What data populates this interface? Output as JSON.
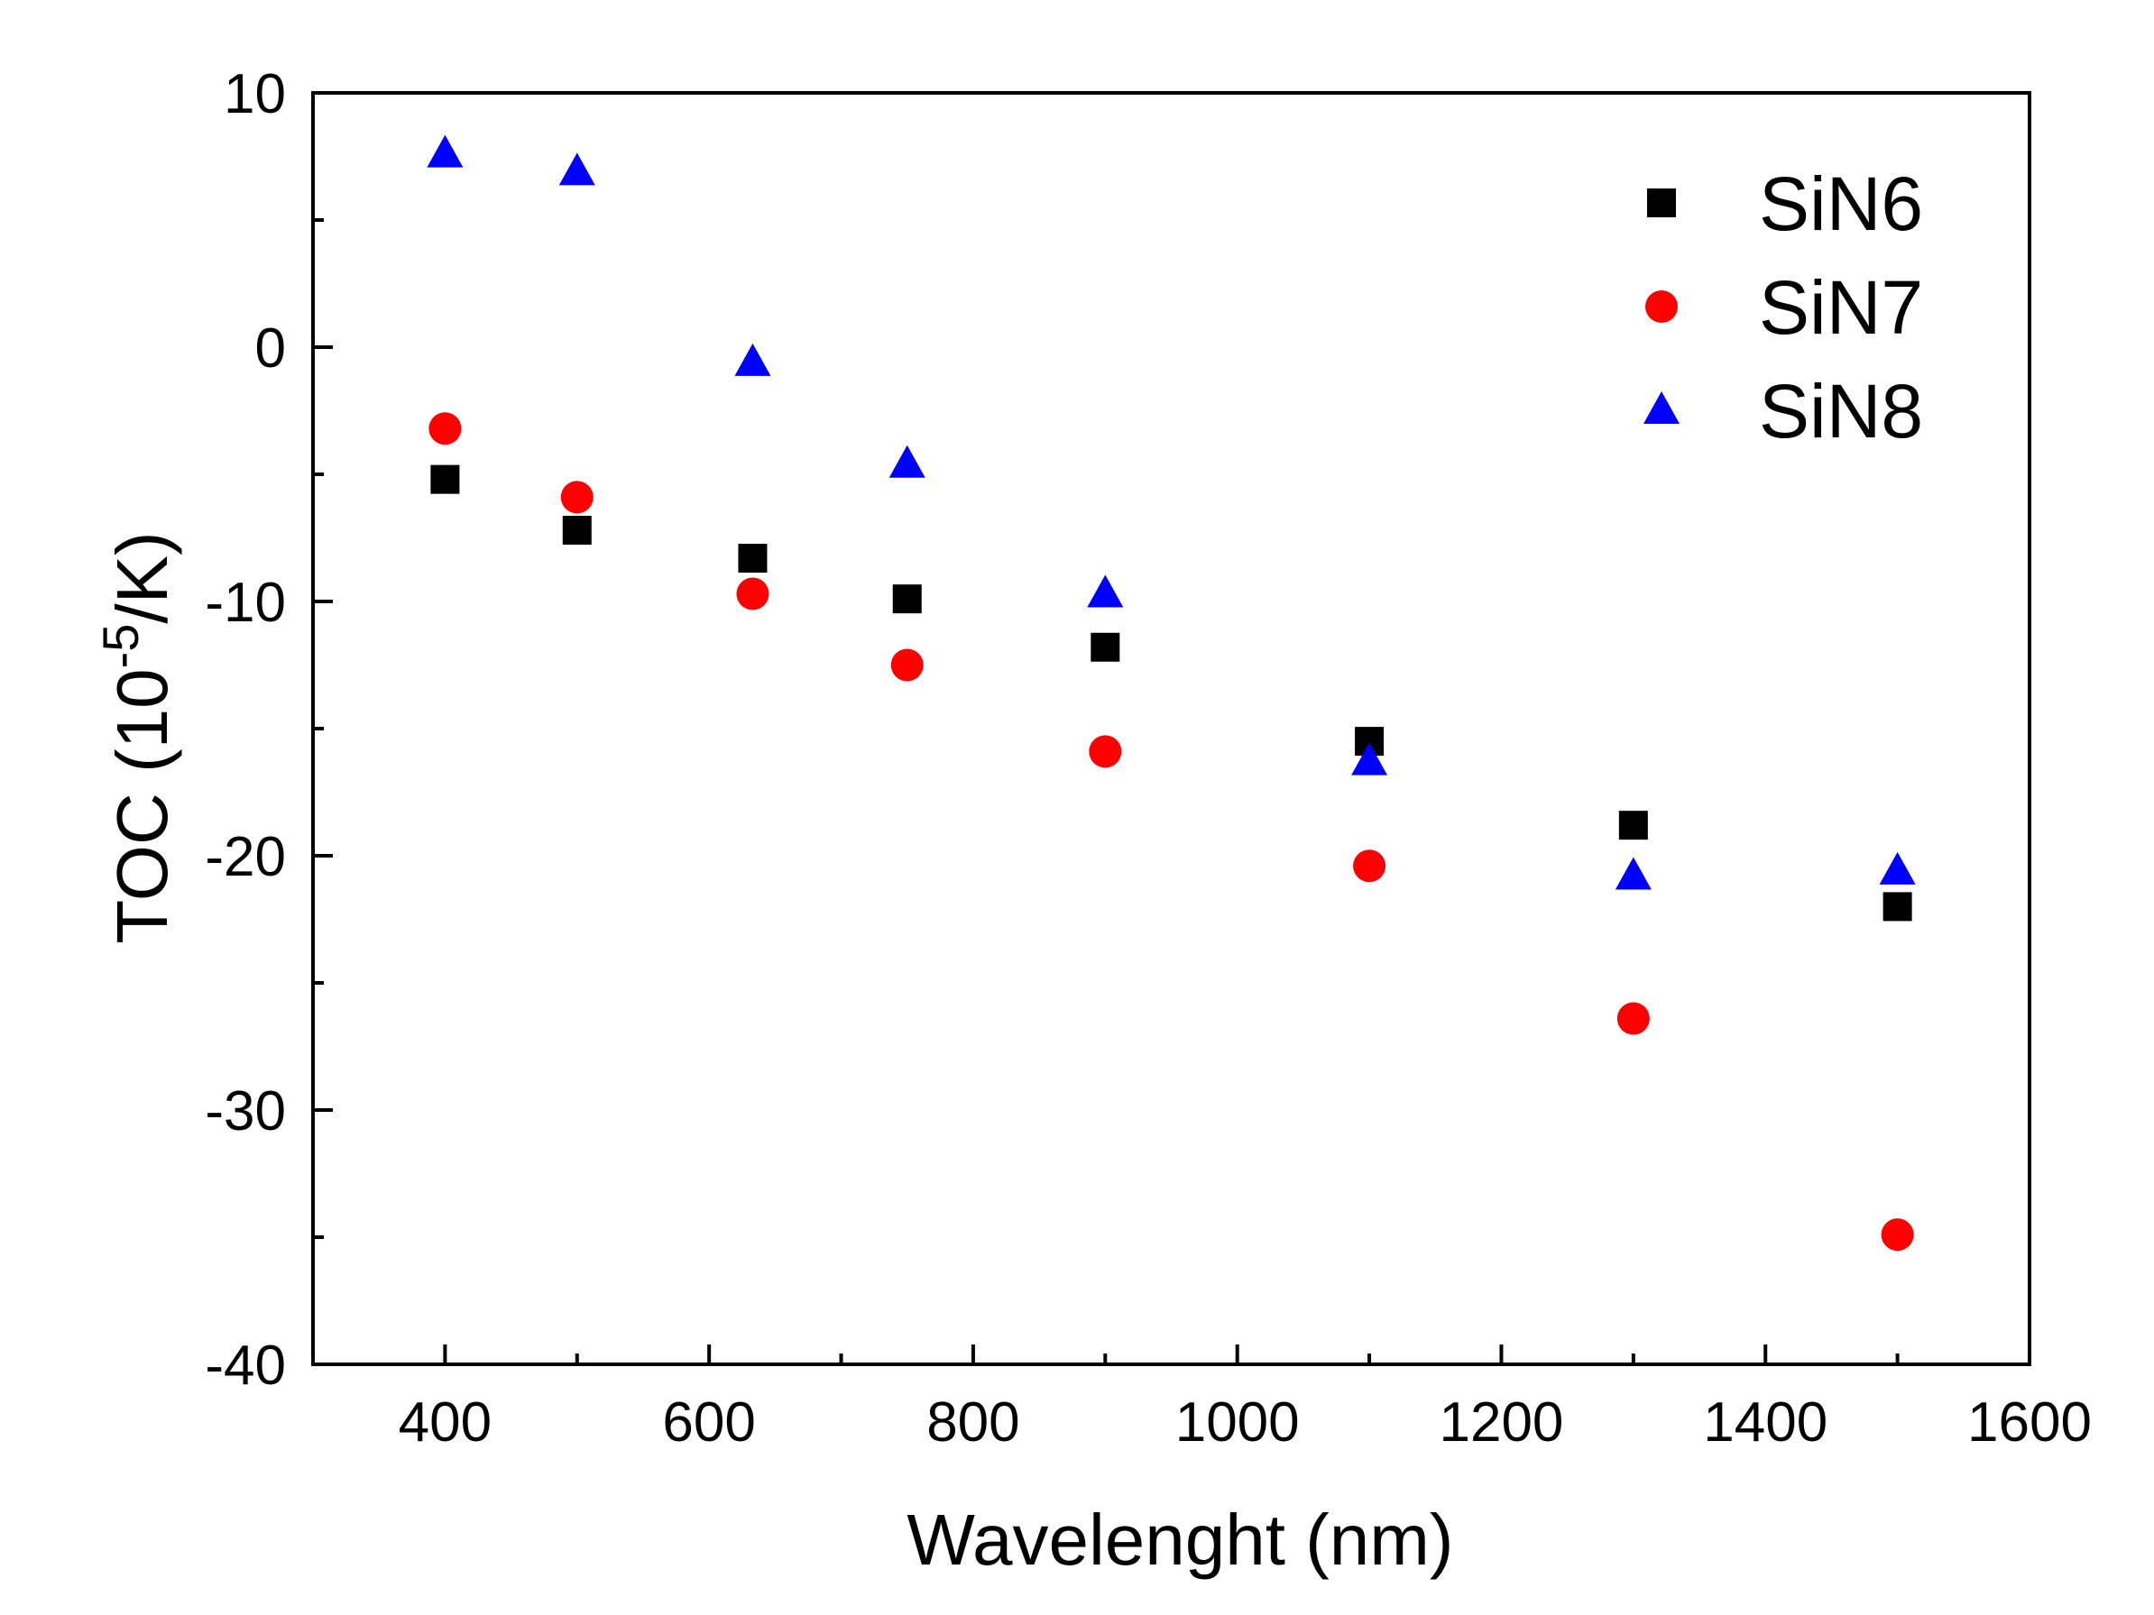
{
  "chart_data": {
    "type": "scatter",
    "title": "",
    "xlabel": "Wavelenght (nm)",
    "ylabel": {
      "prefix": "TOC (10",
      "sup": "-5",
      "suffix": "/K)"
    },
    "xlim": [
      300,
      1600
    ],
    "ylim": [
      -40,
      10
    ],
    "xticks": [
      400,
      600,
      800,
      1000,
      1200,
      1400,
      1600
    ],
    "yticks": [
      -40,
      -30,
      -20,
      -10,
      0,
      10
    ],
    "xtick_labels": [
      "400",
      "600",
      "800",
      "1000",
      "1200",
      "1400",
      "1600"
    ],
    "ytick_labels": [
      "-40",
      "-30",
      "-20",
      "-10",
      "0",
      "10"
    ],
    "grid": false,
    "legend_position": "top-right",
    "x": [
      400,
      500,
      633,
      750,
      900,
      1100,
      1300,
      1500
    ],
    "series": [
      {
        "name": "SiN6",
        "marker": "square",
        "color": "#000000",
        "values": [
          -5.2,
          -7.2,
          -8.3,
          -9.9,
          -11.8,
          -15.5,
          -18.8,
          -22.0
        ]
      },
      {
        "name": "SiN7",
        "marker": "circle",
        "color": "#ff0000",
        "values": [
          -3.2,
          -5.9,
          -9.7,
          -12.5,
          -15.9,
          -20.4,
          -26.4,
          -34.9
        ]
      },
      {
        "name": "SiN8",
        "marker": "triangle",
        "color": "#0000ff",
        "values": [
          7.6,
          6.9,
          -0.6,
          -4.6,
          -9.7,
          -16.3,
          -20.8,
          -20.6
        ]
      }
    ]
  }
}
